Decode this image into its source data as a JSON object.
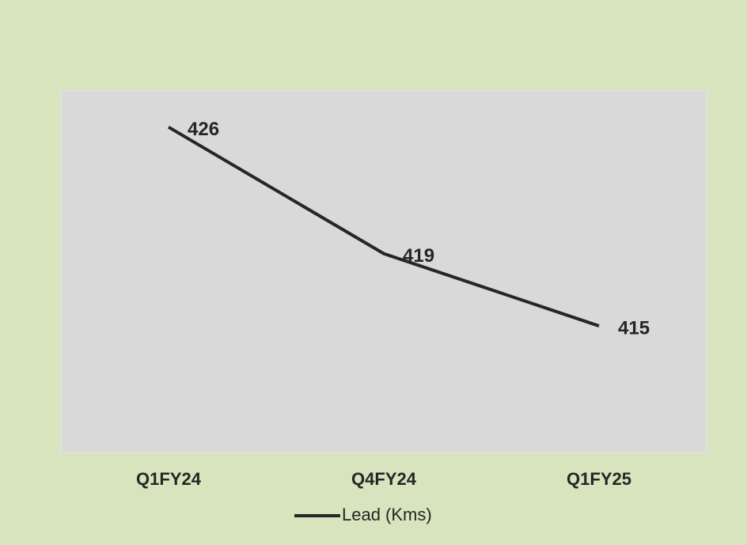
{
  "chart_data": {
    "type": "line",
    "categories": [
      "Q1FY24",
      "Q4FY24",
      "Q1FY25"
    ],
    "series": [
      {
        "name": "Lead (Kms)",
        "color": "#262626",
        "values": [
          426,
          419,
          415
        ]
      }
    ],
    "ylim": [
      408,
      428
    ],
    "legend": "bottom"
  }
}
